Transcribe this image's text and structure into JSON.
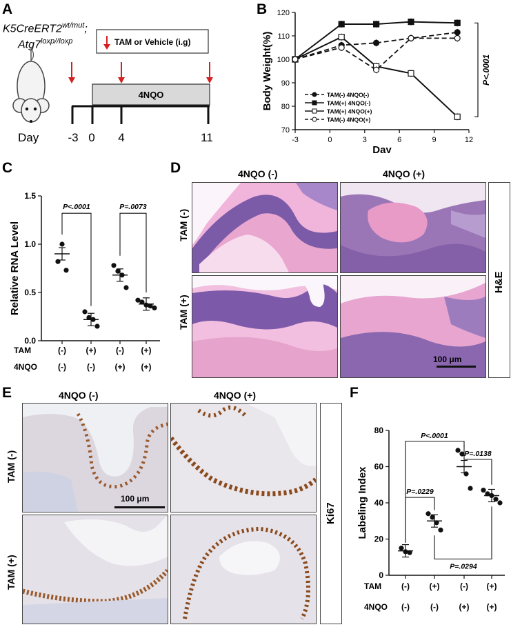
{
  "panels": {
    "A": {
      "letter": "A",
      "genotype_line1_base": "K5CreERT2",
      "genotype_line1_sup": "wt/mut",
      "genotype_line1_tail": ";",
      "genotype_line2_base": "Atg7",
      "genotype_line2_sup": "loxp//loxp",
      "treatment_box": "TAM or Vehicle (i.g)",
      "bar_label": "4NQO",
      "day_label": "Day",
      "days": [
        "-3",
        "0",
        "4",
        "11"
      ]
    },
    "B": {
      "letter": "B"
    },
    "C": {
      "letter": "C"
    },
    "D": {
      "letter": "D",
      "col_headers": [
        "4NQO (-)",
        "4NQO (+)"
      ],
      "row_labels": [
        "TAM (-)",
        "TAM (+)"
      ],
      "stain": "H&E",
      "scale_bar": "100 μm"
    },
    "E": {
      "letter": "E",
      "col_headers": [
        "4NQO (-)",
        "4NQO (+)"
      ],
      "row_labels": [
        "TAM (-)",
        "TAM (+)"
      ],
      "stain": "Ki67",
      "scale_bar": "100 μm"
    },
    "F": {
      "letter": "F"
    }
  },
  "colors": {
    "he_pink": "#e9a6cf",
    "he_purple": "#7a5aa8",
    "ihc_background": "#eef0f4",
    "ihc_tissue": "#d9d5dc",
    "ihc_brown": "#8a4a1c",
    "arrow_red": "#d42020"
  },
  "chart_data": [
    {
      "panel": "B",
      "type": "line",
      "xlabel": "Day",
      "ylabel": "Body Weight(%)",
      "xlim": [
        -3,
        12
      ],
      "ylim": [
        70,
        120
      ],
      "xticks": [
        "-3",
        "0",
        "3",
        "6",
        "9",
        "12"
      ],
      "yticks": [
        "70",
        "80",
        "90",
        "100",
        "110",
        "120"
      ],
      "x": [
        -3,
        1,
        4,
        7,
        11
      ],
      "series": [
        {
          "name": "TAM(-) 4NQO(-)",
          "values": [
            100,
            106,
            107,
            109,
            111.5
          ],
          "marker": "filled-circle",
          "line": "dashed"
        },
        {
          "name": "TAM(+) 4NQO(-)",
          "values": [
            100,
            115,
            115,
            116,
            115.5
          ],
          "marker": "filled-square",
          "line": "solid"
        },
        {
          "name": "TAM(+) 4NQO(+)",
          "values": [
            100,
            109.5,
            97,
            94,
            75.5
          ],
          "marker": "open-square",
          "line": "solid"
        },
        {
          "name": "TAM(-) 4NQO(+)",
          "values": [
            100,
            105,
            95.5,
            109,
            109
          ],
          "marker": "open-circle",
          "line": "dashed"
        }
      ],
      "annotation": "P<.0001",
      "legend_position": "bottom-left"
    },
    {
      "panel": "C",
      "type": "scatter",
      "ylabel": "Relative RNA Level",
      "ylim": [
        0,
        1.5
      ],
      "yticks": [
        "0.0",
        "0.5",
        "1.0",
        "1.5"
      ],
      "group_row_labels": [
        "TAM",
        "4NQO"
      ],
      "groups": [
        {
          "TAM": "(-)",
          "4NQO": "(-)",
          "points": [
            0.82,
            1.0,
            0.73
          ],
          "mean": 0.9
        },
        {
          "TAM": "(+)",
          "4NQO": "(-)",
          "points": [
            0.3,
            0.24,
            0.22,
            0.15
          ],
          "mean": 0.22
        },
        {
          "TAM": "(-)",
          "4NQO": "(+)",
          "points": [
            0.78,
            0.72,
            0.68,
            0.55
          ],
          "mean": 0.68
        },
        {
          "TAM": "(+)",
          "4NQO": "(+)",
          "points": [
            0.42,
            0.4,
            0.37,
            0.36,
            0.34
          ],
          "mean": 0.38
        }
      ],
      "comparisons": [
        {
          "a": 0,
          "b": 1,
          "label": "P<.0001"
        },
        {
          "a": 2,
          "b": 3,
          "label": "P=.0073"
        }
      ]
    },
    {
      "panel": "F",
      "type": "scatter",
      "ylabel": "Labeling Index",
      "ylim": [
        0,
        80
      ],
      "yticks": [
        "0",
        "20",
        "40",
        "60",
        "80"
      ],
      "group_row_labels": [
        "TAM",
        "4NQO"
      ],
      "groups": [
        {
          "TAM": "(-)",
          "4NQO": "(-)",
          "points": [
            15,
            13,
            12.5
          ],
          "mean": 13.5
        },
        {
          "TAM": "(+)",
          "4NQO": "(-)",
          "points": [
            34,
            32,
            29,
            25
          ],
          "mean": 30
        },
        {
          "TAM": "(-)",
          "4NQO": "(+)",
          "points": [
            69,
            67,
            56,
            48
          ],
          "mean": 60
        },
        {
          "TAM": "(+)",
          "4NQO": "(+)",
          "points": [
            47,
            45,
            44,
            42,
            40
          ],
          "mean": 44
        }
      ],
      "comparisons": [
        {
          "a": 0,
          "b": 2,
          "label": "P<.0001"
        },
        {
          "a": 2,
          "b": 3,
          "label": "P=.0138"
        },
        {
          "a": 0,
          "b": 1,
          "label": "P=.0229"
        },
        {
          "a": 1,
          "b": 3,
          "label": "P=.0294"
        }
      ]
    }
  ]
}
